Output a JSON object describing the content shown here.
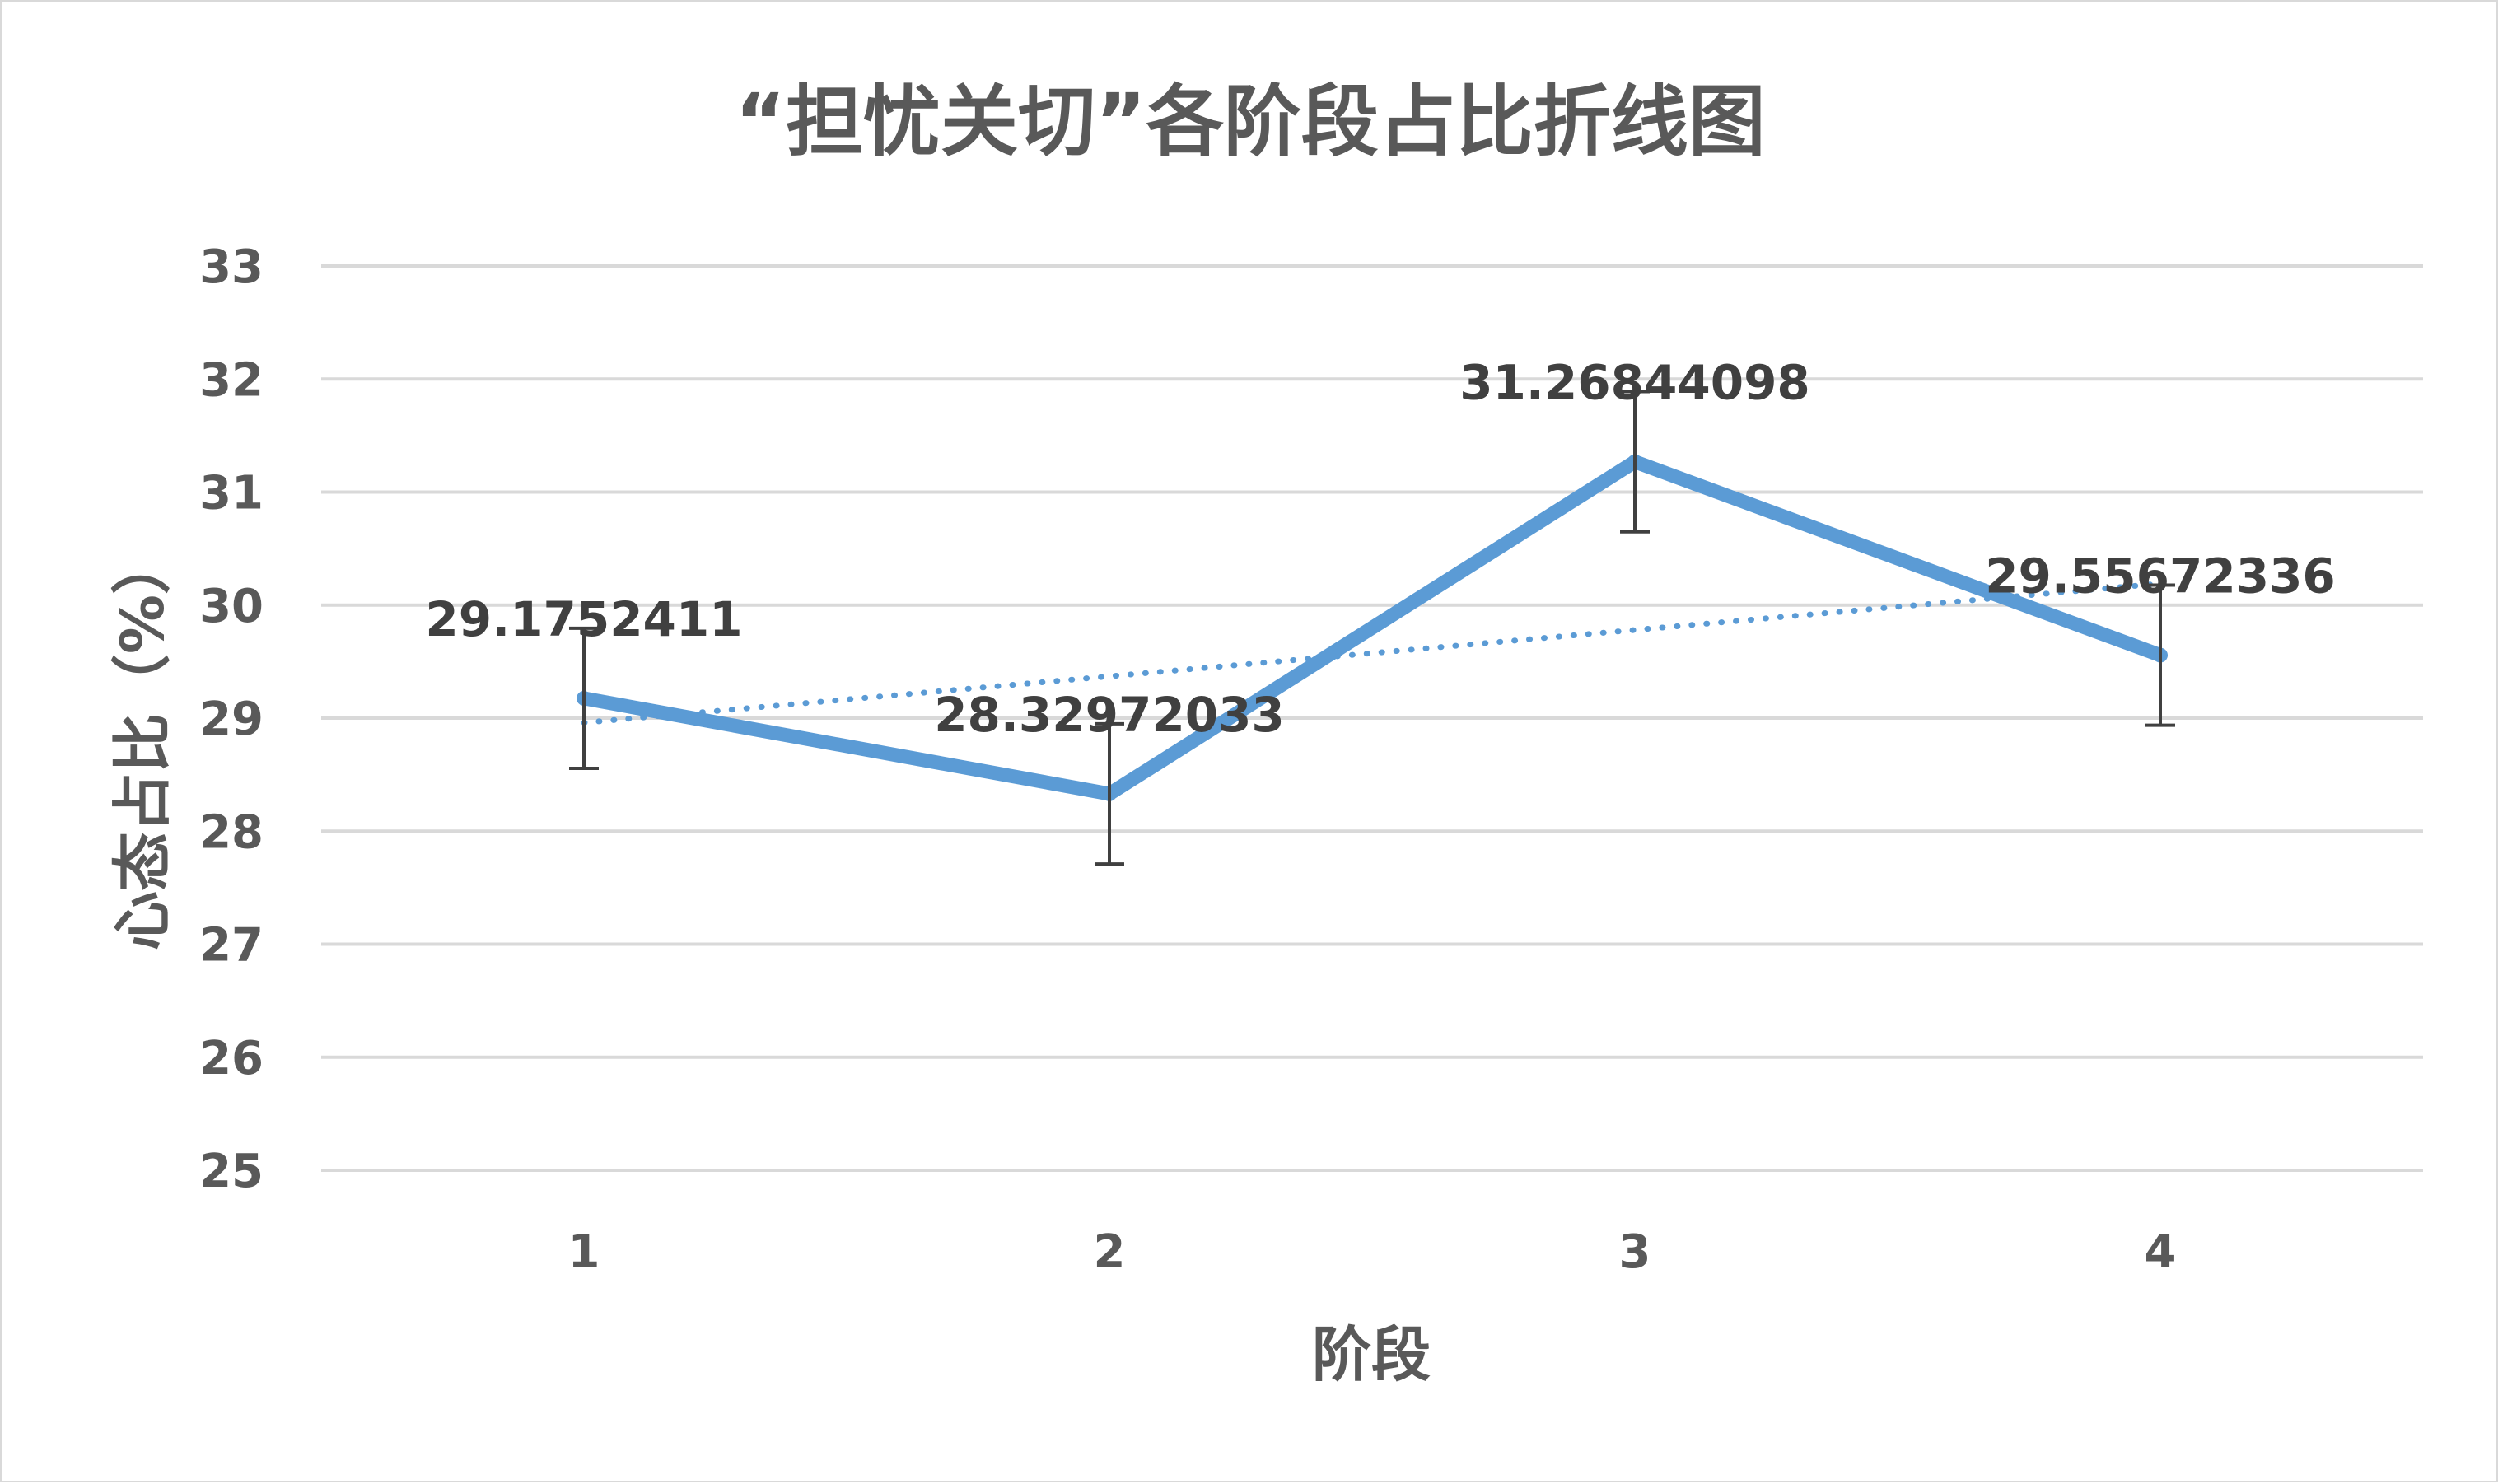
{
  "chart_data": {
    "type": "line",
    "title": "“担忧关切”各阶段占比折线图",
    "xlabel": "阶段",
    "ylabel": "心态占比（%）",
    "categories": [
      "1",
      "2",
      "3",
      "4"
    ],
    "ylim": [
      25,
      33
    ],
    "yticks": [
      25,
      26,
      27,
      28,
      29,
      30,
      31,
      32,
      33
    ],
    "grid": true,
    "legend": "none",
    "series": [
      {
        "values": [
          29.1752411,
          28.32972033,
          31.26844098,
          29.55672336
        ],
        "data_labels": [
          "29.1752411",
          "28.32972033",
          "31.26844098",
          "29.55672336"
        ],
        "error_bar": [
          0.62,
          0.62,
          0.62,
          0.62
        ],
        "color": "#5b9bd5",
        "style": "solid"
      }
    ],
    "trendline": {
      "type": "linear",
      "values": [
        28.96,
        29.37,
        29.78,
        30.19
      ],
      "color": "#5b9bd5",
      "style": "dotted"
    }
  }
}
